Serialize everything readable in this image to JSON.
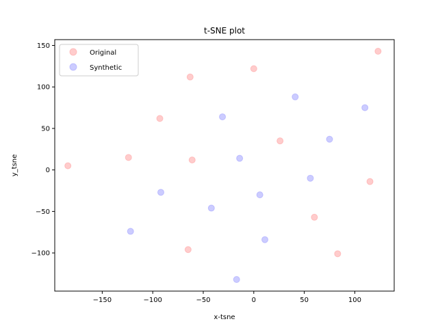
{
  "chart_data": {
    "type": "scatter",
    "title": "t-SNE plot",
    "xlabel": "x-tsne",
    "ylabel": "y_tsne",
    "xlim": [
      -197,
      139
    ],
    "ylim": [
      -146,
      157
    ],
    "xticks": [
      -150,
      -100,
      -50,
      0,
      50,
      100
    ],
    "yticks": [
      -100,
      -50,
      0,
      50,
      100,
      150
    ],
    "xtick_labels": [
      "−150",
      "−100",
      "−50",
      "0",
      "50",
      "100"
    ],
    "ytick_labels": [
      "−100",
      "−50",
      "0",
      "50",
      "100",
      "150"
    ],
    "grid": false,
    "legend": {
      "position": "top-left",
      "entries": [
        {
          "name": "Original",
          "color": "#ff9999"
        },
        {
          "name": "Synthetic",
          "color": "#9999ff"
        }
      ]
    },
    "series": [
      {
        "name": "Original",
        "color": "#ff9999",
        "alpha": 0.5,
        "points": [
          {
            "x": 123,
            "y": 143
          },
          {
            "x": 0,
            "y": 122
          },
          {
            "x": -63,
            "y": 112
          },
          {
            "x": -93,
            "y": 62
          },
          {
            "x": 26,
            "y": 35
          },
          {
            "x": -124,
            "y": 15
          },
          {
            "x": -61,
            "y": 12
          },
          {
            "x": -184,
            "y": 5
          },
          {
            "x": 115,
            "y": -14
          },
          {
            "x": 60,
            "y": -57
          },
          {
            "x": -65,
            "y": -96
          },
          {
            "x": 83,
            "y": -101
          }
        ]
      },
      {
        "name": "Synthetic",
        "color": "#9999ff",
        "alpha": 0.5,
        "points": [
          {
            "x": 41,
            "y": 88
          },
          {
            "x": 110,
            "y": 75
          },
          {
            "x": -31,
            "y": 64
          },
          {
            "x": 75,
            "y": 37
          },
          {
            "x": -14,
            "y": 14
          },
          {
            "x": 56,
            "y": -10
          },
          {
            "x": -92,
            "y": -27
          },
          {
            "x": 6,
            "y": -30
          },
          {
            "x": -42,
            "y": -46
          },
          {
            "x": -122,
            "y": -74
          },
          {
            "x": 11,
            "y": -84
          },
          {
            "x": -17,
            "y": -132
          }
        ]
      }
    ]
  }
}
